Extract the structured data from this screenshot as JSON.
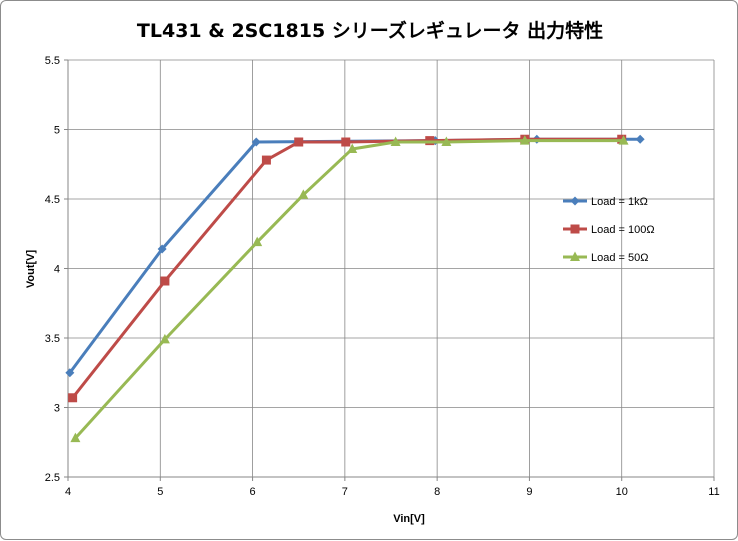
{
  "chart_data": {
    "type": "line",
    "title": "TL431 & 2SC1815 シリーズレギュレータ 出力特性",
    "xlabel": "Vin[V]",
    "ylabel": "Vout[V]",
    "xlim": [
      4,
      11
    ],
    "ylim": [
      2.5,
      5.5
    ],
    "x_ticks": [
      "4",
      "5",
      "6",
      "7",
      "8",
      "9",
      "10",
      "11"
    ],
    "y_ticks": [
      "2.5",
      "3",
      "3.5",
      "4",
      "4.5",
      "5",
      "5.5"
    ],
    "grid": true,
    "legend_position": "right",
    "series": [
      {
        "name": "Load = 1kΩ",
        "color": "#4a7ebb",
        "marker": "diamond",
        "points": [
          [
            4.02,
            3.25
          ],
          [
            5.02,
            4.14
          ],
          [
            6.04,
            4.91
          ],
          [
            7.98,
            4.92
          ],
          [
            9.08,
            4.93
          ],
          [
            10.2,
            4.93
          ]
        ]
      },
      {
        "name": "Load = 100Ω",
        "color": "#be4b48",
        "marker": "square",
        "points": [
          [
            4.05,
            3.07
          ],
          [
            5.05,
            3.91
          ],
          [
            6.15,
            4.78
          ],
          [
            6.5,
            4.91
          ],
          [
            7.01,
            4.91
          ],
          [
            7.92,
            4.92
          ],
          [
            8.95,
            4.93
          ],
          [
            10.0,
            4.93
          ]
        ]
      },
      {
        "name": "Load = 50Ω",
        "color": "#98b954",
        "marker": "triangle",
        "points": [
          [
            4.08,
            2.78
          ],
          [
            5.05,
            3.49
          ],
          [
            6.05,
            4.19
          ],
          [
            6.55,
            4.53
          ],
          [
            7.08,
            4.86
          ],
          [
            7.55,
            4.91
          ],
          [
            8.1,
            4.91
          ],
          [
            8.95,
            4.92
          ],
          [
            10.02,
            4.92
          ]
        ]
      }
    ]
  }
}
